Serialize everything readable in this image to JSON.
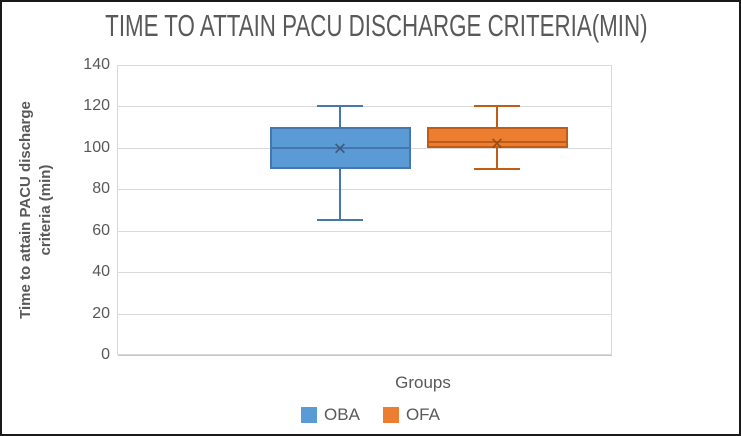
{
  "chart_data": {
    "type": "boxplot",
    "title": "TIME TO ATTAIN PACU DISCHARGE CRITERIA(MIN)",
    "xlabel": "Groups",
    "ylabel": "Time to attain PACU discharge criteria (min)",
    "ylim": [
      0,
      140
    ],
    "yticks": [
      0,
      20,
      40,
      60,
      80,
      100,
      120,
      140
    ],
    "grid": "horizontal",
    "legend_position": "bottom",
    "categories": [
      "Groups"
    ],
    "series": [
      {
        "name": "OBA",
        "min": 65,
        "q1": 90,
        "median": 100,
        "q3": 110,
        "max": 120,
        "mean": 99.5,
        "fill": "#5B9BD5",
        "stroke": "#4577AC",
        "mean_color": "#3E5A7A"
      },
      {
        "name": "OFA",
        "min": 90,
        "q1": 100,
        "median": 103,
        "q3": 110,
        "max": 120,
        "mean": 102,
        "fill": "#ED7D31",
        "stroke": "#BF5D17",
        "mean_color": "#9C4B12"
      }
    ],
    "colors": {
      "grid": "#D9D9D9",
      "text": "#595959"
    }
  }
}
